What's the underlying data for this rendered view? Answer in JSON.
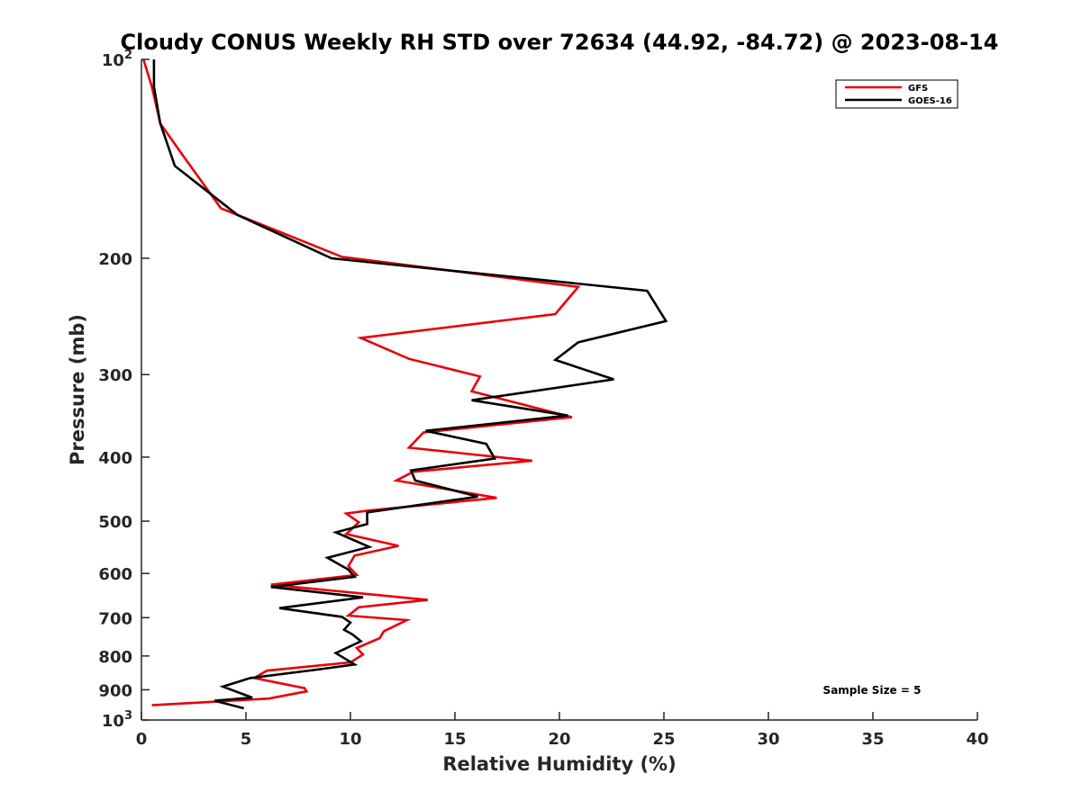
{
  "chart_data": {
    "type": "line",
    "title": "Cloudy CONUS Weekly RH STD over 72634 (44.92, -84.72) @ 2023-08-14",
    "xlabel": "Relative Humidity (%)",
    "ylabel": "Pressure (mb)",
    "xlim": [
      0,
      40
    ],
    "ylim": [
      1000,
      100
    ],
    "y_scale": "log",
    "y_reversed": true,
    "grid": false,
    "x_ticks": [
      "0",
      "5",
      "10",
      "15",
      "20",
      "25",
      "30",
      "35",
      "40"
    ],
    "y_ticks": [
      {
        "value": 100,
        "label": "10",
        "sup": "2"
      },
      {
        "value": 200,
        "label": "200",
        "sup": ""
      },
      {
        "value": 300,
        "label": "300",
        "sup": ""
      },
      {
        "value": 400,
        "label": "400",
        "sup": ""
      },
      {
        "value": 500,
        "label": "500",
        "sup": ""
      },
      {
        "value": 600,
        "label": "600",
        "sup": ""
      },
      {
        "value": 700,
        "label": "700",
        "sup": ""
      },
      {
        "value": 800,
        "label": "800",
        "sup": ""
      },
      {
        "value": 900,
        "label": "900",
        "sup": ""
      },
      {
        "value": 1000,
        "label": "10",
        "sup": "3"
      }
    ],
    "legend_position": "top-right",
    "annotation": "Sample Size = 5",
    "series": [
      {
        "name": "GFS",
        "color": "#e8000b",
        "points": [
          [
            0.1,
            100
          ],
          [
            0.5,
            110
          ],
          [
            0.9,
            125
          ],
          [
            2.0,
            140
          ],
          [
            3.8,
            168
          ],
          [
            9.6,
            199
          ],
          [
            20.9,
            221
          ],
          [
            19.8,
            243
          ],
          [
            10.5,
            264
          ],
          [
            12.8,
            284
          ],
          [
            16.2,
            302
          ],
          [
            15.8,
            318
          ],
          [
            20.6,
            348
          ],
          [
            13.5,
            367
          ],
          [
            12.8,
            387
          ],
          [
            18.7,
            405
          ],
          [
            13.0,
            421
          ],
          [
            12.2,
            434
          ],
          [
            17.0,
            461
          ],
          [
            10.8,
            482
          ],
          [
            9.8,
            487
          ],
          [
            10.4,
            502
          ],
          [
            9.8,
            523
          ],
          [
            12.3,
            545
          ],
          [
            10.2,
            564
          ],
          [
            9.9,
            585
          ],
          [
            10.3,
            603
          ],
          [
            6.2,
            624
          ],
          [
            13.7,
            658
          ],
          [
            10.4,
            675
          ],
          [
            9.9,
            695
          ],
          [
            12.7,
            706
          ],
          [
            11.6,
            734
          ],
          [
            11.4,
            752
          ],
          [
            10.3,
            778
          ],
          [
            10.6,
            796
          ],
          [
            10.0,
            818
          ],
          [
            6.0,
            842
          ],
          [
            5.4,
            864
          ],
          [
            7.8,
            895
          ],
          [
            7.9,
            905
          ],
          [
            6.1,
            928
          ],
          [
            0.5,
            950
          ]
        ]
      },
      {
        "name": "GOES-16",
        "color": "#000000",
        "points": [
          [
            0.6,
            100
          ],
          [
            0.6,
            110
          ],
          [
            0.9,
            125
          ],
          [
            1.6,
            145
          ],
          [
            4.6,
            172
          ],
          [
            9.1,
            200
          ],
          [
            24.2,
            224
          ],
          [
            25.1,
            249
          ],
          [
            20.9,
            268
          ],
          [
            19.8,
            285
          ],
          [
            22.6,
            305
          ],
          [
            15.8,
            328
          ],
          [
            20.4,
            346
          ],
          [
            13.6,
            365
          ],
          [
            16.5,
            382
          ],
          [
            16.9,
            402
          ],
          [
            12.9,
            419
          ],
          [
            13.1,
            434
          ],
          [
            16.1,
            459
          ],
          [
            10.8,
            485
          ],
          [
            10.8,
            505
          ],
          [
            9.3,
            520
          ],
          [
            10.9,
            547
          ],
          [
            8.9,
            568
          ],
          [
            9.9,
            592
          ],
          [
            10.2,
            607
          ],
          [
            6.2,
            629
          ],
          [
            10.6,
            652
          ],
          [
            6.6,
            677
          ],
          [
            9.6,
            698
          ],
          [
            10.0,
            712
          ],
          [
            9.7,
            730
          ],
          [
            10.1,
            742
          ],
          [
            10.5,
            760
          ],
          [
            9.3,
            792
          ],
          [
            10.2,
            824
          ],
          [
            8.4,
            839
          ],
          [
            5.2,
            864
          ],
          [
            3.9,
            890
          ],
          [
            5.3,
            925
          ],
          [
            3.5,
            935
          ],
          [
            4.9,
            960
          ]
        ]
      }
    ]
  }
}
